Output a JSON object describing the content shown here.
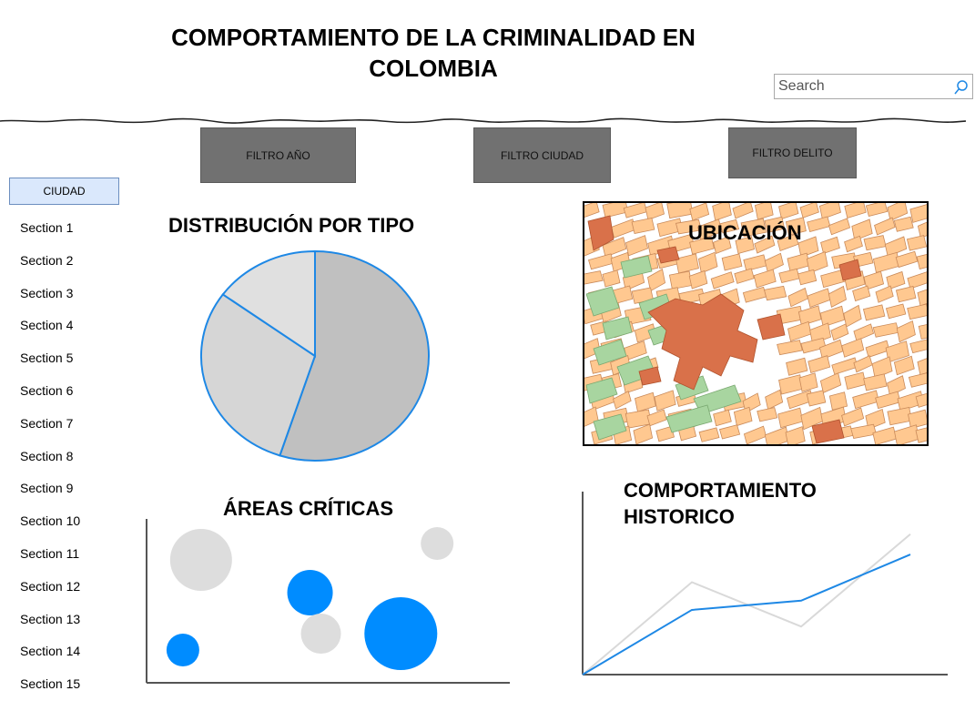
{
  "header": {
    "title_line1": "COMPORTAMIENTO DE LA CRIMINALIDAD EN",
    "title_line2": "COLOMBIA"
  },
  "search": {
    "placeholder": "Search",
    "icon": "search-icon"
  },
  "filters": {
    "year": "FILTRO AÑO",
    "city": "FILTRO CIUDAD",
    "crime": "FILTRO DELITO",
    "color": "#717171"
  },
  "sidebar": {
    "tab_label": "CIUDAD",
    "items": [
      {
        "label": "Section 1"
      },
      {
        "label": "Section 2"
      },
      {
        "label": "Section 3"
      },
      {
        "label": "Section 4"
      },
      {
        "label": "Section 5"
      },
      {
        "label": "Section 6"
      },
      {
        "label": "Section 7"
      },
      {
        "label": "Section 8"
      },
      {
        "label": "Section 9"
      },
      {
        "label": "Section 10"
      },
      {
        "label": "Section 11"
      },
      {
        "label": "Section 12"
      },
      {
        "label": "Section 13"
      },
      {
        "label": "Section 14"
      },
      {
        "label": "Section 15"
      }
    ]
  },
  "panels": {
    "pie_title": "DISTRIBUCIÓN POR TIPO",
    "map_title": "UBICACIÓN",
    "bubble_title": "ÁREAS CRÍTICAS",
    "line_title_1": "COMPORTAMIENTO",
    "line_title_2": "HISTORICO"
  },
  "colors": {
    "accent": "#008cff",
    "light_gray": "#dddddd",
    "mid_gray": "#c0c0c0",
    "map_blocks": "#ffc890",
    "map_parks": "#a8d5a0",
    "map_center": "#d9714a"
  },
  "chart_data": [
    {
      "type": "pie",
      "values": [
        55,
        30,
        15
      ],
      "colors": [
        "#c0c0c0",
        "#d6d6d6",
        "#e0e0e0"
      ],
      "stroke": "#1e88e5"
    },
    {
      "type": "scatter",
      "points": [
        {
          "x": 15,
          "y": 75,
          "r": 34,
          "series": "gray"
        },
        {
          "x": 80,
          "y": 85,
          "r": 18,
          "series": "gray"
        },
        {
          "x": 45,
          "y": 55,
          "r": 25,
          "series": "blue"
        },
        {
          "x": 48,
          "y": 30,
          "r": 22,
          "series": "gray"
        },
        {
          "x": 70,
          "y": 30,
          "r": 40,
          "series": "blue"
        },
        {
          "x": 10,
          "y": 20,
          "r": 18,
          "series": "blue"
        }
      ],
      "xlim": [
        0,
        100
      ],
      "ylim": [
        0,
        100
      ]
    },
    {
      "type": "line",
      "x": [
        0,
        1,
        2,
        3
      ],
      "series": [
        {
          "values": [
            0,
            50,
            26,
            76
          ],
          "color": "#d9d9d9"
        },
        {
          "values": [
            0,
            35,
            40,
            65
          ],
          "color": "#1e88e5"
        }
      ],
      "ylim": [
        0,
        100
      ]
    }
  ]
}
